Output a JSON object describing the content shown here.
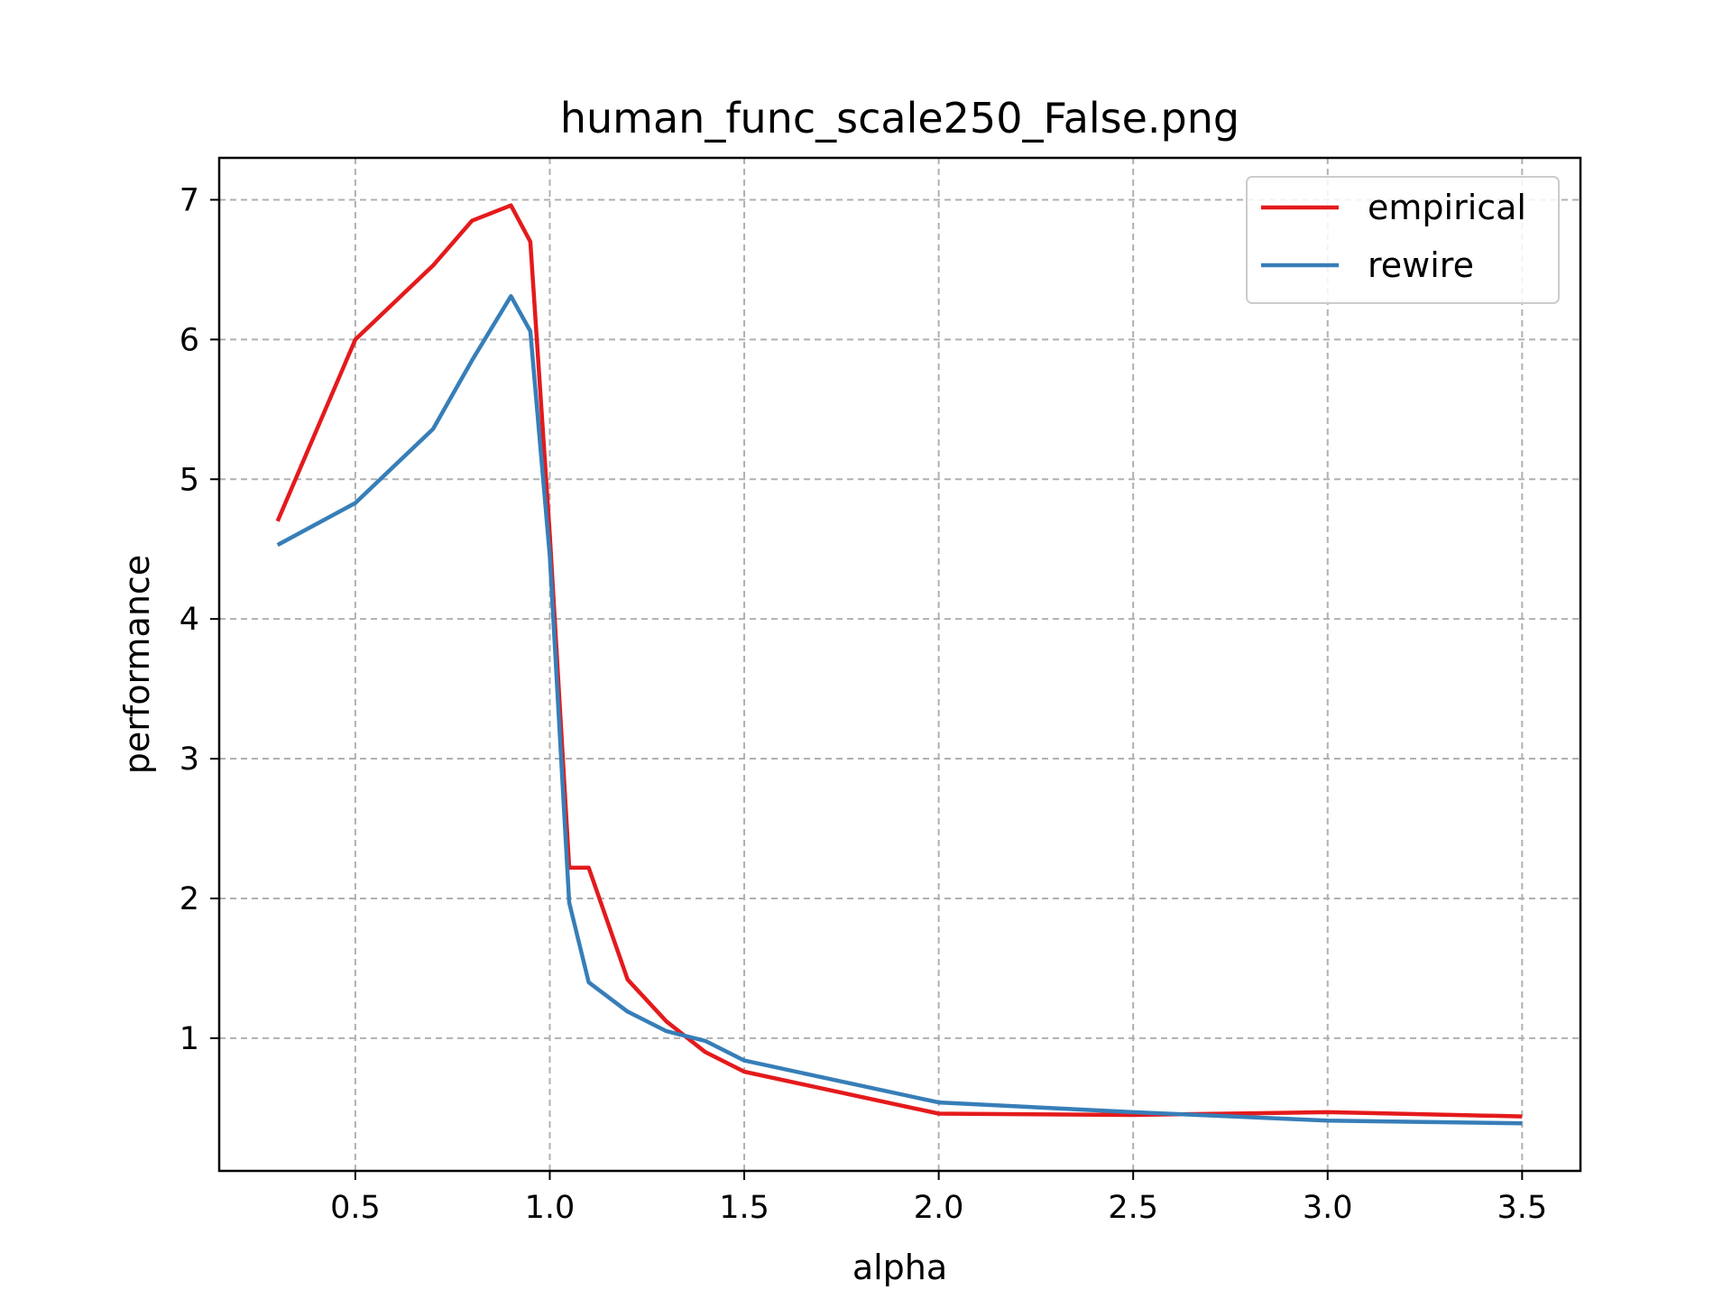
{
  "chart_data": {
    "type": "line",
    "title": "human_func_scale250_False.png",
    "xlabel": "alpha",
    "ylabel": "performance",
    "xlim": [
      0.15,
      3.65
    ],
    "ylim": [
      0.05,
      7.3
    ],
    "xticks": [
      0.5,
      1.0,
      1.5,
      2.0,
      2.5,
      3.0,
      3.5
    ],
    "xtick_labels": [
      "0.5",
      "1.0",
      "1.5",
      "2.0",
      "2.5",
      "3.0",
      "3.5"
    ],
    "yticks": [
      1,
      2,
      3,
      4,
      5,
      6,
      7
    ],
    "ytick_labels": [
      "1",
      "2",
      "3",
      "4",
      "5",
      "6",
      "7"
    ],
    "grid": true,
    "legend_position": "top-right",
    "series": [
      {
        "name": "empirical",
        "color": "#e41a1c",
        "x": [
          0.3,
          0.5,
          0.7,
          0.8,
          0.9,
          0.95,
          1.0,
          1.05,
          1.1,
          1.2,
          1.3,
          1.4,
          1.5,
          2.0,
          2.5,
          3.0,
          3.5
        ],
        "y": [
          4.7,
          6.0,
          6.53,
          6.85,
          6.96,
          6.7,
          4.6,
          2.22,
          2.22,
          1.42,
          1.12,
          0.9,
          0.76,
          0.46,
          0.45,
          0.47,
          0.44
        ]
      },
      {
        "name": "rewire",
        "color": "#377eb8",
        "x": [
          0.3,
          0.5,
          0.7,
          0.8,
          0.9,
          0.95,
          1.0,
          1.05,
          1.1,
          1.2,
          1.3,
          1.4,
          1.5,
          2.0,
          2.5,
          3.0,
          3.5
        ],
        "y": [
          4.53,
          4.83,
          5.36,
          5.85,
          6.31,
          6.06,
          4.45,
          1.97,
          1.4,
          1.19,
          1.05,
          0.98,
          0.84,
          0.54,
          0.47,
          0.41,
          0.39
        ]
      }
    ]
  }
}
